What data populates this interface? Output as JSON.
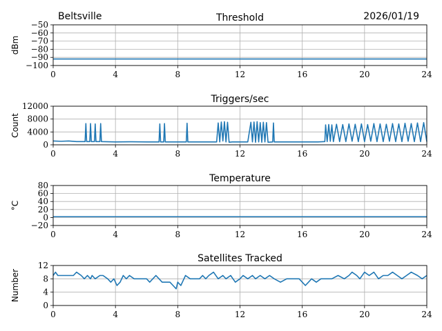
{
  "header": {
    "station": "Beltsville",
    "date": "2026/01/19"
  },
  "colors": {
    "line": "#1f77b4",
    "grid": "#b0b0b0",
    "axis": "#000000"
  },
  "chart_data": [
    {
      "type": "line",
      "title": "Threshold",
      "ylabel": "dBm",
      "xlabel": "",
      "xlim": [
        0,
        24
      ],
      "ylim": [
        -100,
        -50
      ],
      "x_ticks": [
        "0",
        "4",
        "8",
        "12",
        "16",
        "20",
        "24"
      ],
      "y_ticks": [
        "−50",
        "−60",
        "−70",
        "−80",
        "−90",
        "−100"
      ],
      "series": [
        {
          "name": "threshold",
          "x": [
            0,
            24
          ],
          "values": [
            -92,
            -92
          ]
        }
      ]
    },
    {
      "type": "line",
      "title": "Triggers/sec",
      "ylabel": "Count",
      "xlabel": "",
      "xlim": [
        0,
        24
      ],
      "ylim": [
        0,
        12000
      ],
      "x_ticks": [
        "0",
        "4",
        "8",
        "12",
        "16",
        "20",
        "24"
      ],
      "y_ticks": [
        "12000",
        "8000",
        "4000",
        "0"
      ],
      "series": [
        {
          "name": "triggers",
          "x": [
            0,
            0.5,
            1,
            1.5,
            2.05,
            2.1,
            2.15,
            2.35,
            2.4,
            2.45,
            2.65,
            2.7,
            2.75,
            3.0,
            3.05,
            3.1,
            4,
            5,
            6,
            6.8,
            6.85,
            6.9,
            7.1,
            7.15,
            7.2,
            8.55,
            8.6,
            8.65,
            9.5,
            10.5,
            10.6,
            10.7,
            10.8,
            10.9,
            11.0,
            11.1,
            11.2,
            11.3,
            11.5,
            12.0,
            12.5,
            12.7,
            12.8,
            12.9,
            13.0,
            13.1,
            13.2,
            13.3,
            13.4,
            13.5,
            13.6,
            13.7,
            13.8,
            14.1,
            14.15,
            14.2,
            15,
            16,
            17,
            17.45,
            17.5,
            17.6,
            17.7,
            17.8,
            17.9,
            18.0,
            18.2,
            18.4,
            18.6,
            18.8,
            19.0,
            19.2,
            19.4,
            19.6,
            19.8,
            20.0,
            20.2,
            20.4,
            20.6,
            20.8,
            21.0,
            21.2,
            21.4,
            21.6,
            21.8,
            22.0,
            22.2,
            22.4,
            22.6,
            22.8,
            23.0,
            23.2,
            23.4,
            23.6,
            23.8,
            24.0
          ],
          "values": [
            1200,
            1100,
            1200,
            1000,
            1000,
            6600,
            1000,
            1000,
            6600,
            1000,
            1000,
            6500,
            1000,
            1000,
            6600,
            1000,
            900,
            950,
            900,
            900,
            6500,
            900,
            900,
            6600,
            900,
            900,
            6700,
            900,
            900,
            900,
            6800,
            900,
            7100,
            1200,
            7200,
            900,
            7000,
            800,
            900,
            900,
            900,
            7000,
            900,
            7100,
            800,
            7200,
            900,
            6900,
            800,
            7000,
            900,
            6900,
            800,
            900,
            6800,
            900,
            900,
            900,
            900,
            1000,
            6200,
            1000,
            6300,
            1100,
            6200,
            1000,
            6400,
            1000,
            6300,
            1000,
            6500,
            1100,
            6400,
            1000,
            6500,
            1000,
            6300,
            1100,
            6600,
            1000,
            6500,
            1000,
            6400,
            1100,
            6600,
            1000,
            6500,
            1000,
            6700,
            1100,
            6600,
            1000,
            6800,
            1000,
            6900,
            1000
          ]
        }
      ]
    },
    {
      "type": "line",
      "title": "Temperature",
      "ylabel": "°C",
      "xlabel": "",
      "xlim": [
        0,
        24
      ],
      "ylim": [
        -20,
        80
      ],
      "x_ticks": [
        "0",
        "4",
        "8",
        "12",
        "16",
        "20",
        "24"
      ],
      "y_ticks": [
        "80",
        "60",
        "40",
        "20",
        "0",
        "−20"
      ],
      "series": [
        {
          "name": "temperature",
          "x": [
            0,
            24
          ],
          "values": [
            2,
            2
          ]
        }
      ]
    },
    {
      "type": "line",
      "title": "Satellites Tracked",
      "ylabel": "Number",
      "xlabel": "",
      "xlim": [
        0,
        24
      ],
      "ylim": [
        0,
        12
      ],
      "x_ticks": [
        "0",
        "4",
        "8",
        "12",
        "16",
        "20",
        "24"
      ],
      "y_ticks": [
        "12",
        "8",
        "4",
        "0"
      ],
      "series": [
        {
          "name": "satellites",
          "x": [
            0,
            0.15,
            0.3,
            0.8,
            1.3,
            1.5,
            1.8,
            2.0,
            2.2,
            2.4,
            2.5,
            2.7,
            3.0,
            3.2,
            3.5,
            3.7,
            3.9,
            4.0,
            4.1,
            4.3,
            4.5,
            4.7,
            4.9,
            5.2,
            5.5,
            5.8,
            6.0,
            6.2,
            6.4,
            6.6,
            6.8,
            7.0,
            7.2,
            7.5,
            7.7,
            7.9,
            8.0,
            8.2,
            8.3,
            8.5,
            8.8,
            9.0,
            9.4,
            9.6,
            9.8,
            10.0,
            10.3,
            10.6,
            10.9,
            11.1,
            11.4,
            11.7,
            12.0,
            12.2,
            12.5,
            12.8,
            13.0,
            13.3,
            13.6,
            13.9,
            14.2,
            14.6,
            15.0,
            15.4,
            15.8,
            16.0,
            16.2,
            16.4,
            16.6,
            16.9,
            17.2,
            17.5,
            17.9,
            18.3,
            18.7,
            19.0,
            19.2,
            19.5,
            19.7,
            20.0,
            20.3,
            20.6,
            20.9,
            21.2,
            21.5,
            21.8,
            22.1,
            22.4,
            22.7,
            23.0,
            23.4,
            23.7,
            24.0
          ],
          "values": [
            9,
            10,
            9,
            9,
            9,
            10,
            9,
            8,
            9,
            8,
            9,
            8,
            9,
            9,
            8,
            7,
            8,
            7,
            6,
            7,
            9,
            8,
            9,
            8,
            8,
            8,
            8,
            7,
            8,
            9,
            8,
            7,
            7,
            7,
            6,
            5,
            7,
            6,
            7,
            9,
            8,
            8,
            8,
            9,
            8,
            9,
            10,
            8,
            9,
            8,
            9,
            7,
            8,
            9,
            8,
            9,
            8,
            9,
            8,
            9,
            8,
            7,
            8,
            8,
            8,
            7,
            6,
            7,
            8,
            7,
            8,
            8,
            8,
            9,
            8,
            9,
            10,
            9,
            8,
            10,
            9,
            10,
            8,
            9,
            9,
            10,
            9,
            8,
            9,
            10,
            9,
            8,
            9
          ]
        }
      ]
    }
  ]
}
